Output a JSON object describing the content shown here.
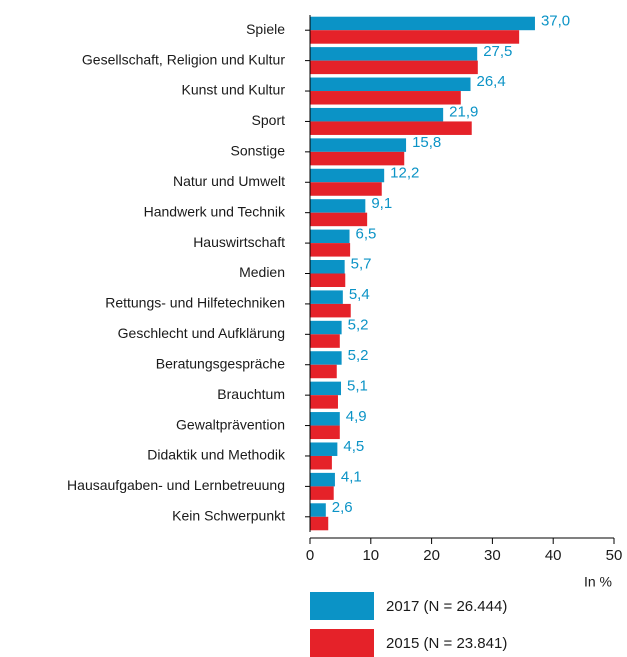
{
  "chart_data": {
    "type": "bar",
    "orientation": "horizontal",
    "categories": [
      "Spiele",
      "Gesellschaft, Religion und Kultur",
      "Kunst und Kultur",
      "Sport",
      "Sonstige",
      "Natur und Umwelt",
      "Handwerk und Technik",
      "Hauswirtschaft",
      "Medien",
      "Rettungs- und Hilfetechniken",
      "Geschlecht und Aufklärung",
      "Beratungsgespräche",
      "Brauchtum",
      "Gewaltprävention",
      "Didaktik und Methodik",
      "Hausaufgaben- und Lernbetreuung",
      "Kein Schwerpunkt"
    ],
    "series": [
      {
        "name": "2017 (N = 26.444)",
        "color": "#0b93c6",
        "values": [
          37.0,
          27.5,
          26.4,
          21.9,
          15.8,
          12.2,
          9.1,
          6.5,
          5.7,
          5.4,
          5.2,
          5.2,
          5.1,
          4.9,
          4.5,
          4.1,
          2.6
        ],
        "value_labels": [
          "37,0",
          "27,5",
          "26,4",
          "21,9",
          "15,8",
          "12,2",
          "9,1",
          "6,5",
          "5,7",
          "5,4",
          "5,2",
          "5,2",
          "5,1",
          "4,9",
          "4,5",
          "4,1",
          "2,6"
        ]
      },
      {
        "name": "2015 (N = 23.841)",
        "color": "#e52229",
        "values": [
          34.4,
          27.6,
          24.8,
          26.6,
          15.5,
          11.8,
          9.4,
          6.6,
          5.8,
          6.7,
          4.9,
          4.4,
          4.6,
          4.9,
          3.6,
          3.9,
          3.0
        ]
      }
    ],
    "xlim": [
      0,
      50
    ],
    "xticks": [
      0,
      10,
      20,
      30,
      40,
      50
    ],
    "xlabel": "In %"
  }
}
